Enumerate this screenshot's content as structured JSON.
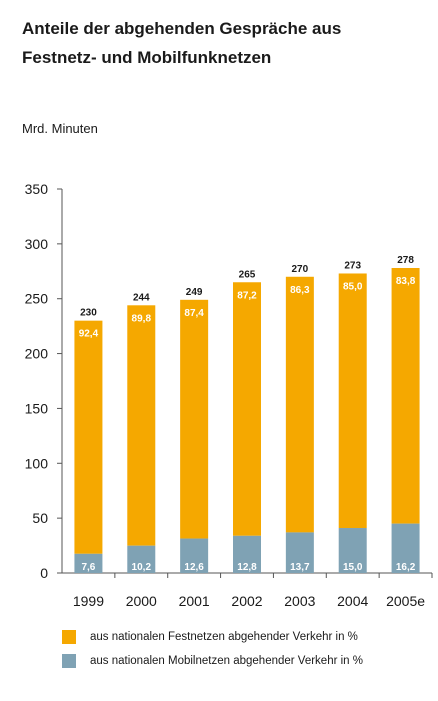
{
  "title_line1": "Anteile der abgehenden Gespräche aus",
  "title_line2": "Festnetz- und Mobilfunknetzen",
  "unit_label": "Mrd. Minuten",
  "legend": [
    {
      "label": "aus nationalen Festnetzen abgehender Verkehr in %",
      "color": "#f5a800"
    },
    {
      "label": "aus nationalen Mobilnetzen abgehender Verkehr in %",
      "color": "#7fa2b4"
    }
  ],
  "chart_data": {
    "type": "bar",
    "stacked": true,
    "categories": [
      "1999",
      "2000",
      "2001",
      "2002",
      "2003",
      "2004",
      "2005e"
    ],
    "totals": [
      230,
      244,
      249,
      265,
      270,
      273,
      278
    ],
    "series": [
      {
        "name": "aus nationalen Mobilnetzen abgehender Verkehr in %",
        "percent_labels": [
          "7,6",
          "10,2",
          "12,6",
          "12,8",
          "13,7",
          "15,0",
          "16,2"
        ],
        "values": [
          17.5,
          24.9,
          31.4,
          33.9,
          37.0,
          41.0,
          45.0
        ],
        "color": "#7fa2b4"
      },
      {
        "name": "aus nationalen Festnetzen abgehender Verkehr in %",
        "percent_labels": [
          "92,4",
          "89,8",
          "87,4",
          "87,2",
          "86,3",
          "85,0",
          "83,8"
        ],
        "values": [
          212.5,
          219.1,
          217.6,
          231.1,
          233.0,
          232.0,
          233.0
        ],
        "color": "#f5a800"
      }
    ],
    "ylim": [
      0,
      350
    ],
    "yticks": [
      0,
      50,
      100,
      150,
      200,
      250,
      300,
      350
    ],
    "grid": false,
    "legend_position": "bottom"
  }
}
